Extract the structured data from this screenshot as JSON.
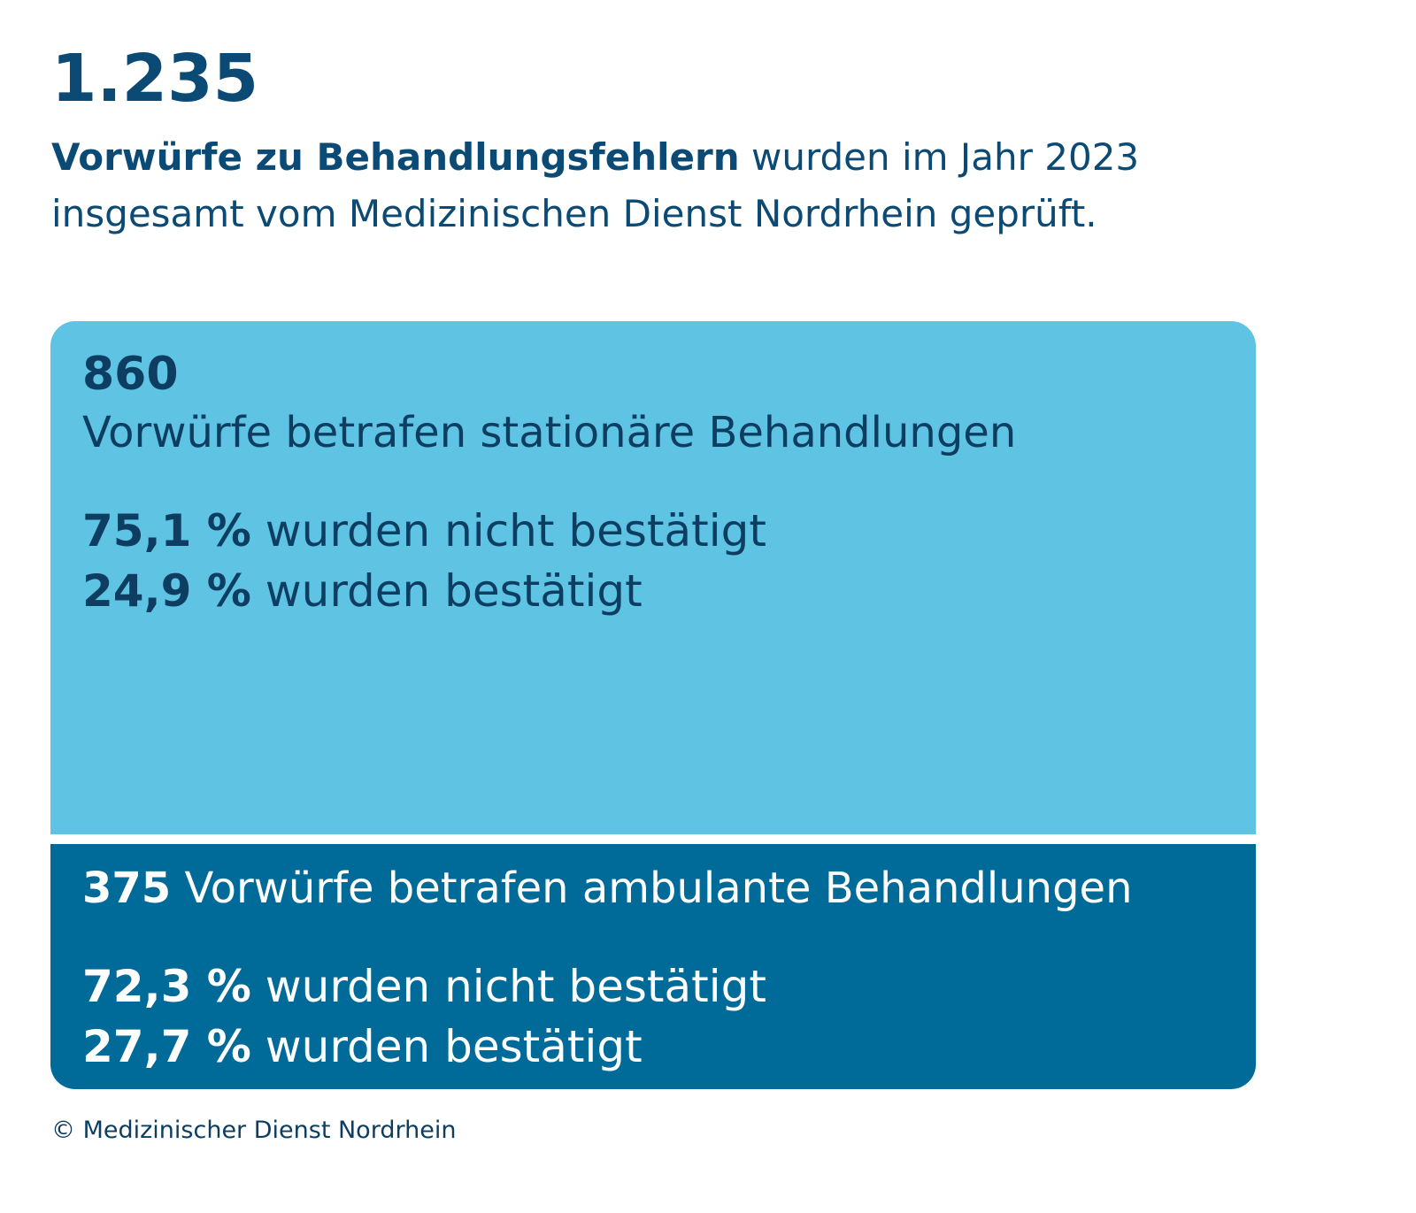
{
  "header": {
    "total": "1.235",
    "subtitle_strong": "Vorwürfe zu Behandlungsfehlern",
    "subtitle_rest_1": " wurden im Jahr 2023",
    "subtitle_rest_2": "insgesamt vom Medizinischen Dienst Nordrhein geprüft."
  },
  "inpatient": {
    "count": "860",
    "description": "Vorwürfe betrafen stationäre Behandlungen",
    "not_confirmed_pct": "75,1 %",
    "not_confirmed_label": " wurden nicht bestätigt",
    "confirmed_pct": "24,9 %",
    "confirmed_label": " wurden bestätigt",
    "color": "#5fc3e3"
  },
  "outpatient": {
    "count": "375",
    "description": " Vorwürfe betrafen ambulante Behandlungen",
    "not_confirmed_pct": "72,3 %",
    "not_confirmed_label": " wurden nicht bestätigt",
    "confirmed_pct": "27,7 %",
    "confirmed_label": " wurden bestätigt",
    "color": "#006a99"
  },
  "footer": {
    "copyright": "© Medizinischer Dienst Nordrhein"
  },
  "chart_data": {
    "type": "bar",
    "categories": [
      "stationäre Behandlungen",
      "ambulante Behandlungen"
    ],
    "values": [
      860,
      375
    ],
    "total": 1235,
    "series": [
      {
        "name": "wurden nicht bestätigt",
        "values": [
          75.1,
          72.3
        ]
      },
      {
        "name": "wurden bestätigt",
        "values": [
          24.9,
          27.7
        ]
      }
    ],
    "title": "1.235",
    "xlabel": "",
    "ylabel": ""
  }
}
